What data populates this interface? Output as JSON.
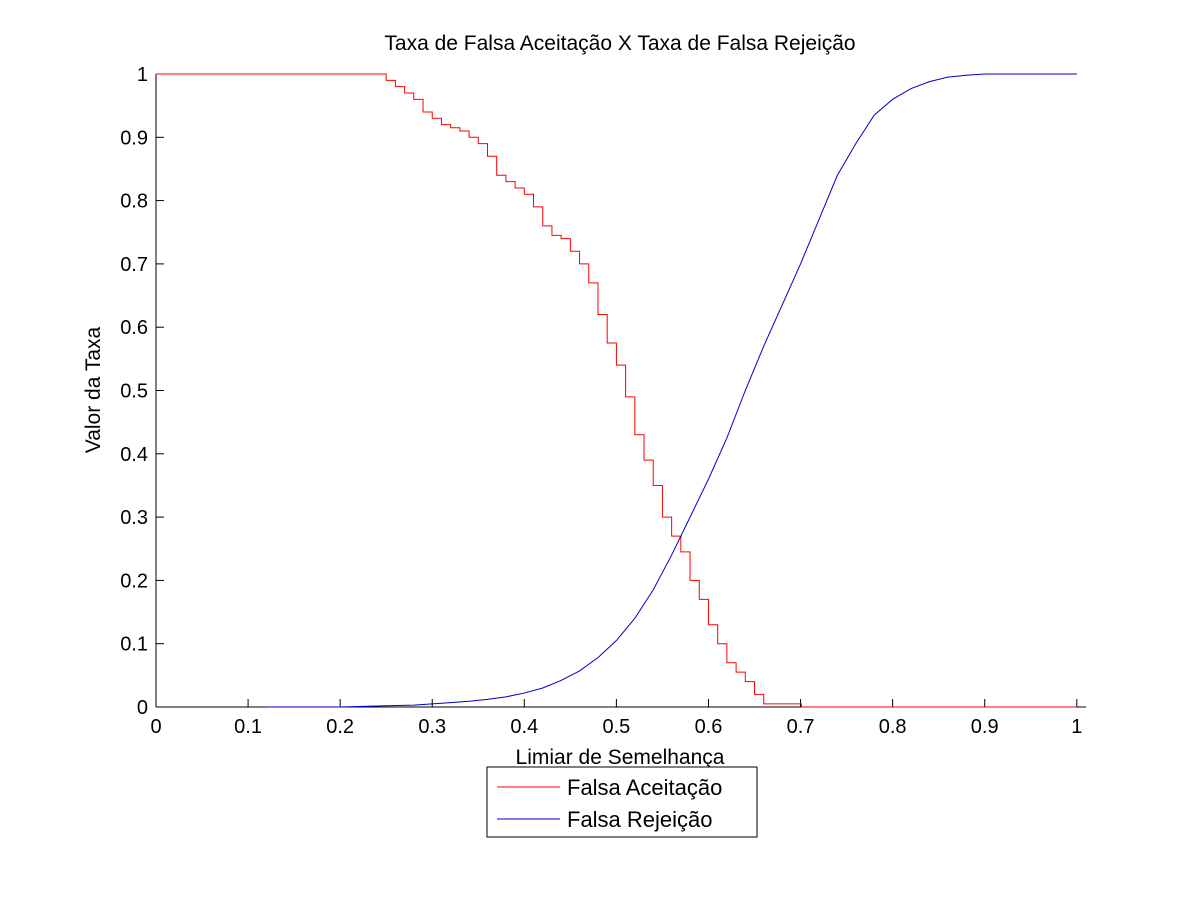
{
  "chart_data": {
    "type": "line",
    "title": "Taxa de Falsa Aceitação X Taxa de Falsa Rejeição",
    "xlabel": "Limiar de Semelhança",
    "ylabel": "Valor da Taxa",
    "xlim": [
      0,
      1.01
    ],
    "ylim": [
      0,
      1
    ],
    "xticks": [
      "0",
      "0.1",
      "0.2",
      "0.3",
      "0.4",
      "0.5",
      "0.6",
      "0.7",
      "0.8",
      "0.9",
      "1"
    ],
    "yticks": [
      "0",
      "0.1",
      "0.2",
      "0.3",
      "0.4",
      "0.5",
      "0.6",
      "0.7",
      "0.8",
      "0.9",
      "1"
    ],
    "grid": false,
    "legend_position": "bottom-center-outside",
    "series": [
      {
        "name": "Falsa Aceitação",
        "color": "#ff0000",
        "x": [
          0,
          0.24,
          0.25,
          0.26,
          0.27,
          0.28,
          0.29,
          0.3,
          0.31,
          0.32,
          0.33,
          0.34,
          0.35,
          0.36,
          0.37,
          0.38,
          0.39,
          0.4,
          0.41,
          0.42,
          0.43,
          0.44,
          0.45,
          0.46,
          0.47,
          0.48,
          0.49,
          0.5,
          0.51,
          0.52,
          0.53,
          0.54,
          0.55,
          0.56,
          0.57,
          0.58,
          0.59,
          0.6,
          0.61,
          0.62,
          0.63,
          0.64,
          0.65,
          0.66,
          0.67,
          0.7,
          0.701,
          0.75,
          1.0
        ],
        "y": [
          1.0,
          1.0,
          0.99,
          0.98,
          0.97,
          0.96,
          0.94,
          0.93,
          0.92,
          0.915,
          0.91,
          0.9,
          0.89,
          0.87,
          0.84,
          0.83,
          0.82,
          0.81,
          0.79,
          0.76,
          0.745,
          0.74,
          0.72,
          0.7,
          0.67,
          0.62,
          0.575,
          0.54,
          0.49,
          0.43,
          0.39,
          0.35,
          0.3,
          0.27,
          0.245,
          0.2,
          0.17,
          0.13,
          0.1,
          0.07,
          0.055,
          0.04,
          0.02,
          0.005,
          0.005,
          0.005,
          0,
          0,
          0
        ]
      },
      {
        "name": "Falsa Rejeição",
        "color": "#0000cc",
        "x": [
          0.12,
          0.2,
          0.25,
          0.28,
          0.3,
          0.32,
          0.34,
          0.36,
          0.38,
          0.4,
          0.42,
          0.44,
          0.46,
          0.48,
          0.5,
          0.52,
          0.54,
          0.56,
          0.58,
          0.6,
          0.62,
          0.64,
          0.66,
          0.68,
          0.7,
          0.72,
          0.74,
          0.76,
          0.78,
          0.8,
          0.82,
          0.84,
          0.86,
          0.88,
          0.9,
          0.95,
          1.0
        ],
        "y": [
          0,
          0,
          0.002,
          0.003,
          0.005,
          0.007,
          0.009,
          0.012,
          0.016,
          0.022,
          0.03,
          0.042,
          0.057,
          0.078,
          0.105,
          0.14,
          0.185,
          0.24,
          0.3,
          0.36,
          0.425,
          0.5,
          0.57,
          0.635,
          0.7,
          0.77,
          0.84,
          0.89,
          0.935,
          0.96,
          0.977,
          0.988,
          0.995,
          0.998,
          1.0,
          1.0,
          1.0
        ]
      }
    ]
  }
}
